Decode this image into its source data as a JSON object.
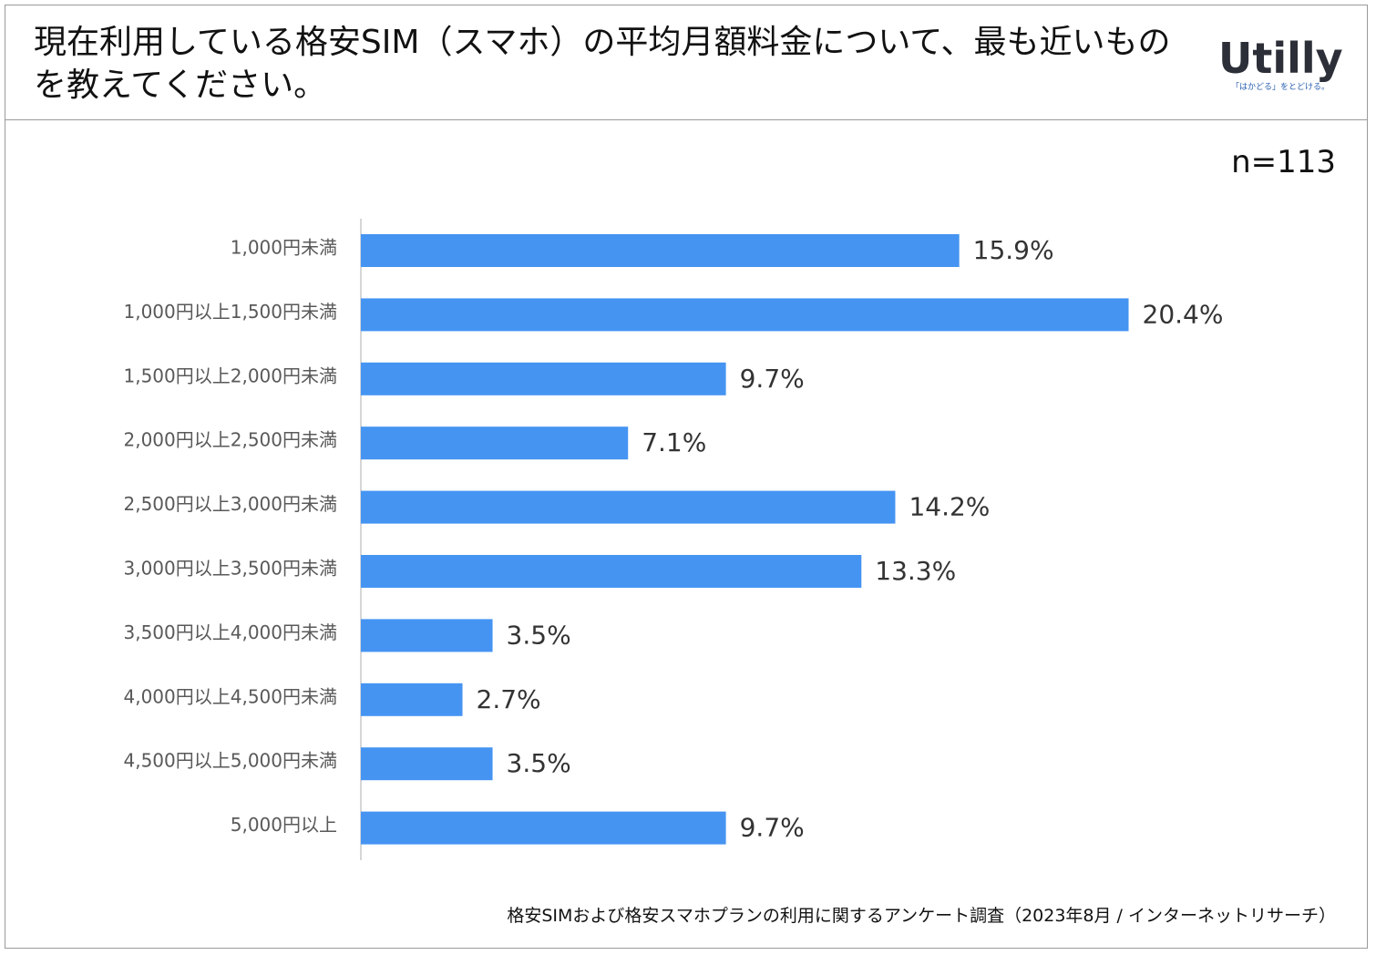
{
  "header": {
    "title": "現在利用している格安SIM（スマホ）の平均月額料金について、最も近いものを教えてください。",
    "logo_text": "Utilly",
    "logo_tagline": "「はかどる」をとどける。"
  },
  "sample_size": "n=113",
  "footnote": "格安SIMおよび格安スマホプランの利用に関するアンケート調査（2023年8月 / インターネットリサーチ）",
  "colors": {
    "bar": "#4594f2",
    "axis": "#c8c8c8",
    "category_text": "#595959",
    "value_text": "#333333"
  },
  "chart_data": {
    "type": "bar",
    "orientation": "horizontal",
    "title": "",
    "xlabel": "",
    "ylabel": "",
    "xlim": [
      0,
      25
    ],
    "grid": false,
    "unit": "%",
    "categories": [
      "1,000円未満",
      "1,000円以上1,500円未満",
      "1,500円以上2,000円未満",
      "2,000円以上2,500円未満",
      "2,500円以上3,000円未満",
      "3,000円以上3,500円未満",
      "3,500円以上4,000円未満",
      "4,000円以上4,500円未満",
      "4,500円以上5,000円未満",
      "5,000円以上"
    ],
    "values": [
      15.9,
      20.4,
      9.7,
      7.1,
      14.2,
      13.3,
      3.5,
      2.7,
      3.5,
      9.7
    ],
    "value_labels": [
      "15.9%",
      "20.4%",
      "9.7%",
      "7.1%",
      "14.2%",
      "13.3%",
      "3.5%",
      "2.7%",
      "3.5%",
      "9.7%"
    ]
  }
}
